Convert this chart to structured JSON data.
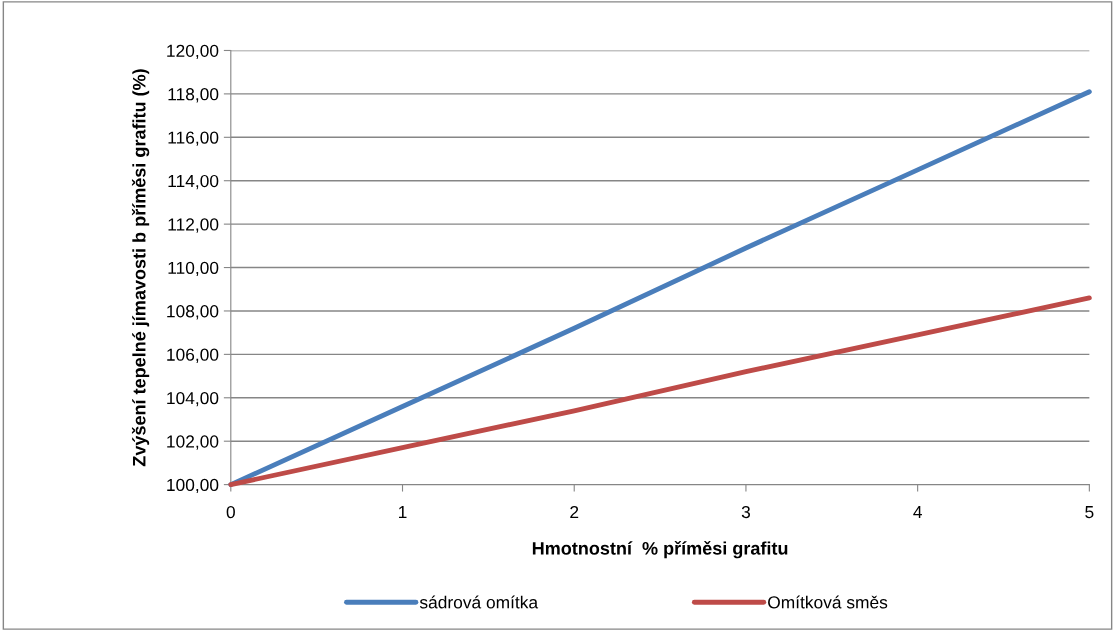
{
  "chart_data": {
    "type": "line",
    "xlabel": "Hmotnostní  % příměsi grafitu",
    "ylabel": "Zvýšení tepelné jímavosti b příměsi grafitu (%)",
    "x": [
      0,
      1,
      2,
      3,
      4,
      5
    ],
    "series": [
      {
        "name": "sádrová omítka",
        "color": "#4a7ebb",
        "values": [
          100.0,
          103.6,
          107.2,
          110.9,
          114.5,
          118.1
        ]
      },
      {
        "name": "Omítková směs",
        "color": "#be4b48",
        "values": [
          100.0,
          101.7,
          103.4,
          105.2,
          106.9,
          108.6
        ]
      }
    ],
    "xlim": [
      0,
      5
    ],
    "xticks": [
      0,
      1,
      2,
      3,
      4,
      5
    ],
    "ylim": [
      100,
      120
    ],
    "yticks": [
      {
        "value": 100,
        "label": "100,00"
      },
      {
        "value": 102,
        "label": "102,00"
      },
      {
        "value": 104,
        "label": "104,00"
      },
      {
        "value": 106,
        "label": "106,00"
      },
      {
        "value": 108,
        "label": "108,00"
      },
      {
        "value": 110,
        "label": "110,00"
      },
      {
        "value": 112,
        "label": "112,00"
      },
      {
        "value": 114,
        "label": "114,00"
      },
      {
        "value": 116,
        "label": "116,00"
      },
      {
        "value": 118,
        "label": "118,00"
      },
      {
        "value": 120,
        "label": "120,00"
      }
    ],
    "grid": "y",
    "legend": "bottom",
    "marker": "none",
    "line_style": "solid"
  }
}
